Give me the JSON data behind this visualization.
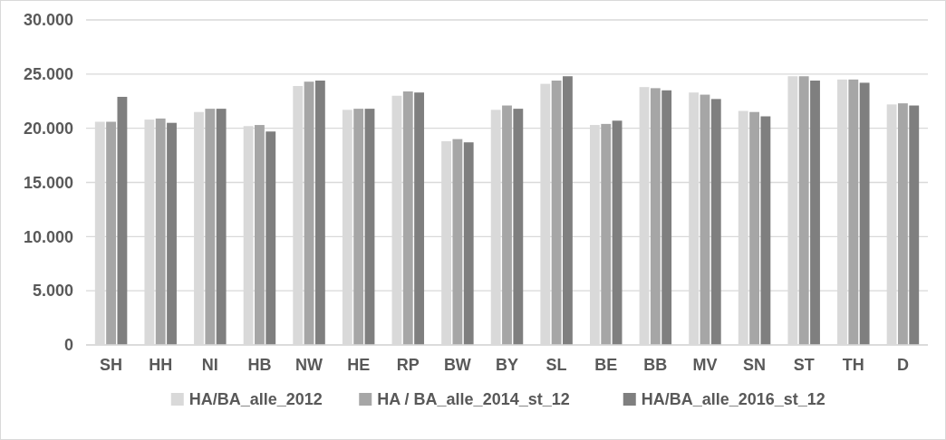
{
  "chart_data": {
    "type": "bar",
    "categories": [
      "SH",
      "HH",
      "NI",
      "HB",
      "NW",
      "HE",
      "RP",
      "BW",
      "BY",
      "SL",
      "BE",
      "BB",
      "MV",
      "SN",
      "ST",
      "TH",
      "D"
    ],
    "series": [
      {
        "name": "HA/BA_alle_2012",
        "color": "#d9d9d9",
        "values": [
          20600,
          20800,
          21500,
          20200,
          23900,
          21700,
          23000,
          18800,
          21700,
          24100,
          20300,
          23800,
          23300,
          21600,
          24800,
          24500,
          22200
        ]
      },
      {
        "name": "HA / BA_alle_2014_st_12",
        "color": "#a6a6a6",
        "values": [
          20600,
          20900,
          21800,
          20300,
          24300,
          21800,
          23400,
          19000,
          22100,
          24400,
          20400,
          23700,
          23100,
          21500,
          24800,
          24500,
          22300
        ]
      },
      {
        "name": "HA/BA_alle_2016_st_12",
        "color": "#7f7f7f",
        "values": [
          22900,
          20500,
          21800,
          19700,
          24400,
          21800,
          23300,
          18700,
          21800,
          24800,
          20700,
          23500,
          22700,
          21100,
          24400,
          24200,
          22100
        ]
      }
    ],
    "ylim": [
      0,
      30000
    ],
    "yticks": [
      {
        "value": 0,
        "label": "0"
      },
      {
        "value": 5000,
        "label": "5.000"
      },
      {
        "value": 10000,
        "label": "10.000"
      },
      {
        "value": 15000,
        "label": "15.000"
      },
      {
        "value": 20000,
        "label": "20.000"
      },
      {
        "value": 25000,
        "label": "25.000"
      },
      {
        "value": 30000,
        "label": "30.000"
      }
    ],
    "grid": "y",
    "legend": "bottom"
  }
}
